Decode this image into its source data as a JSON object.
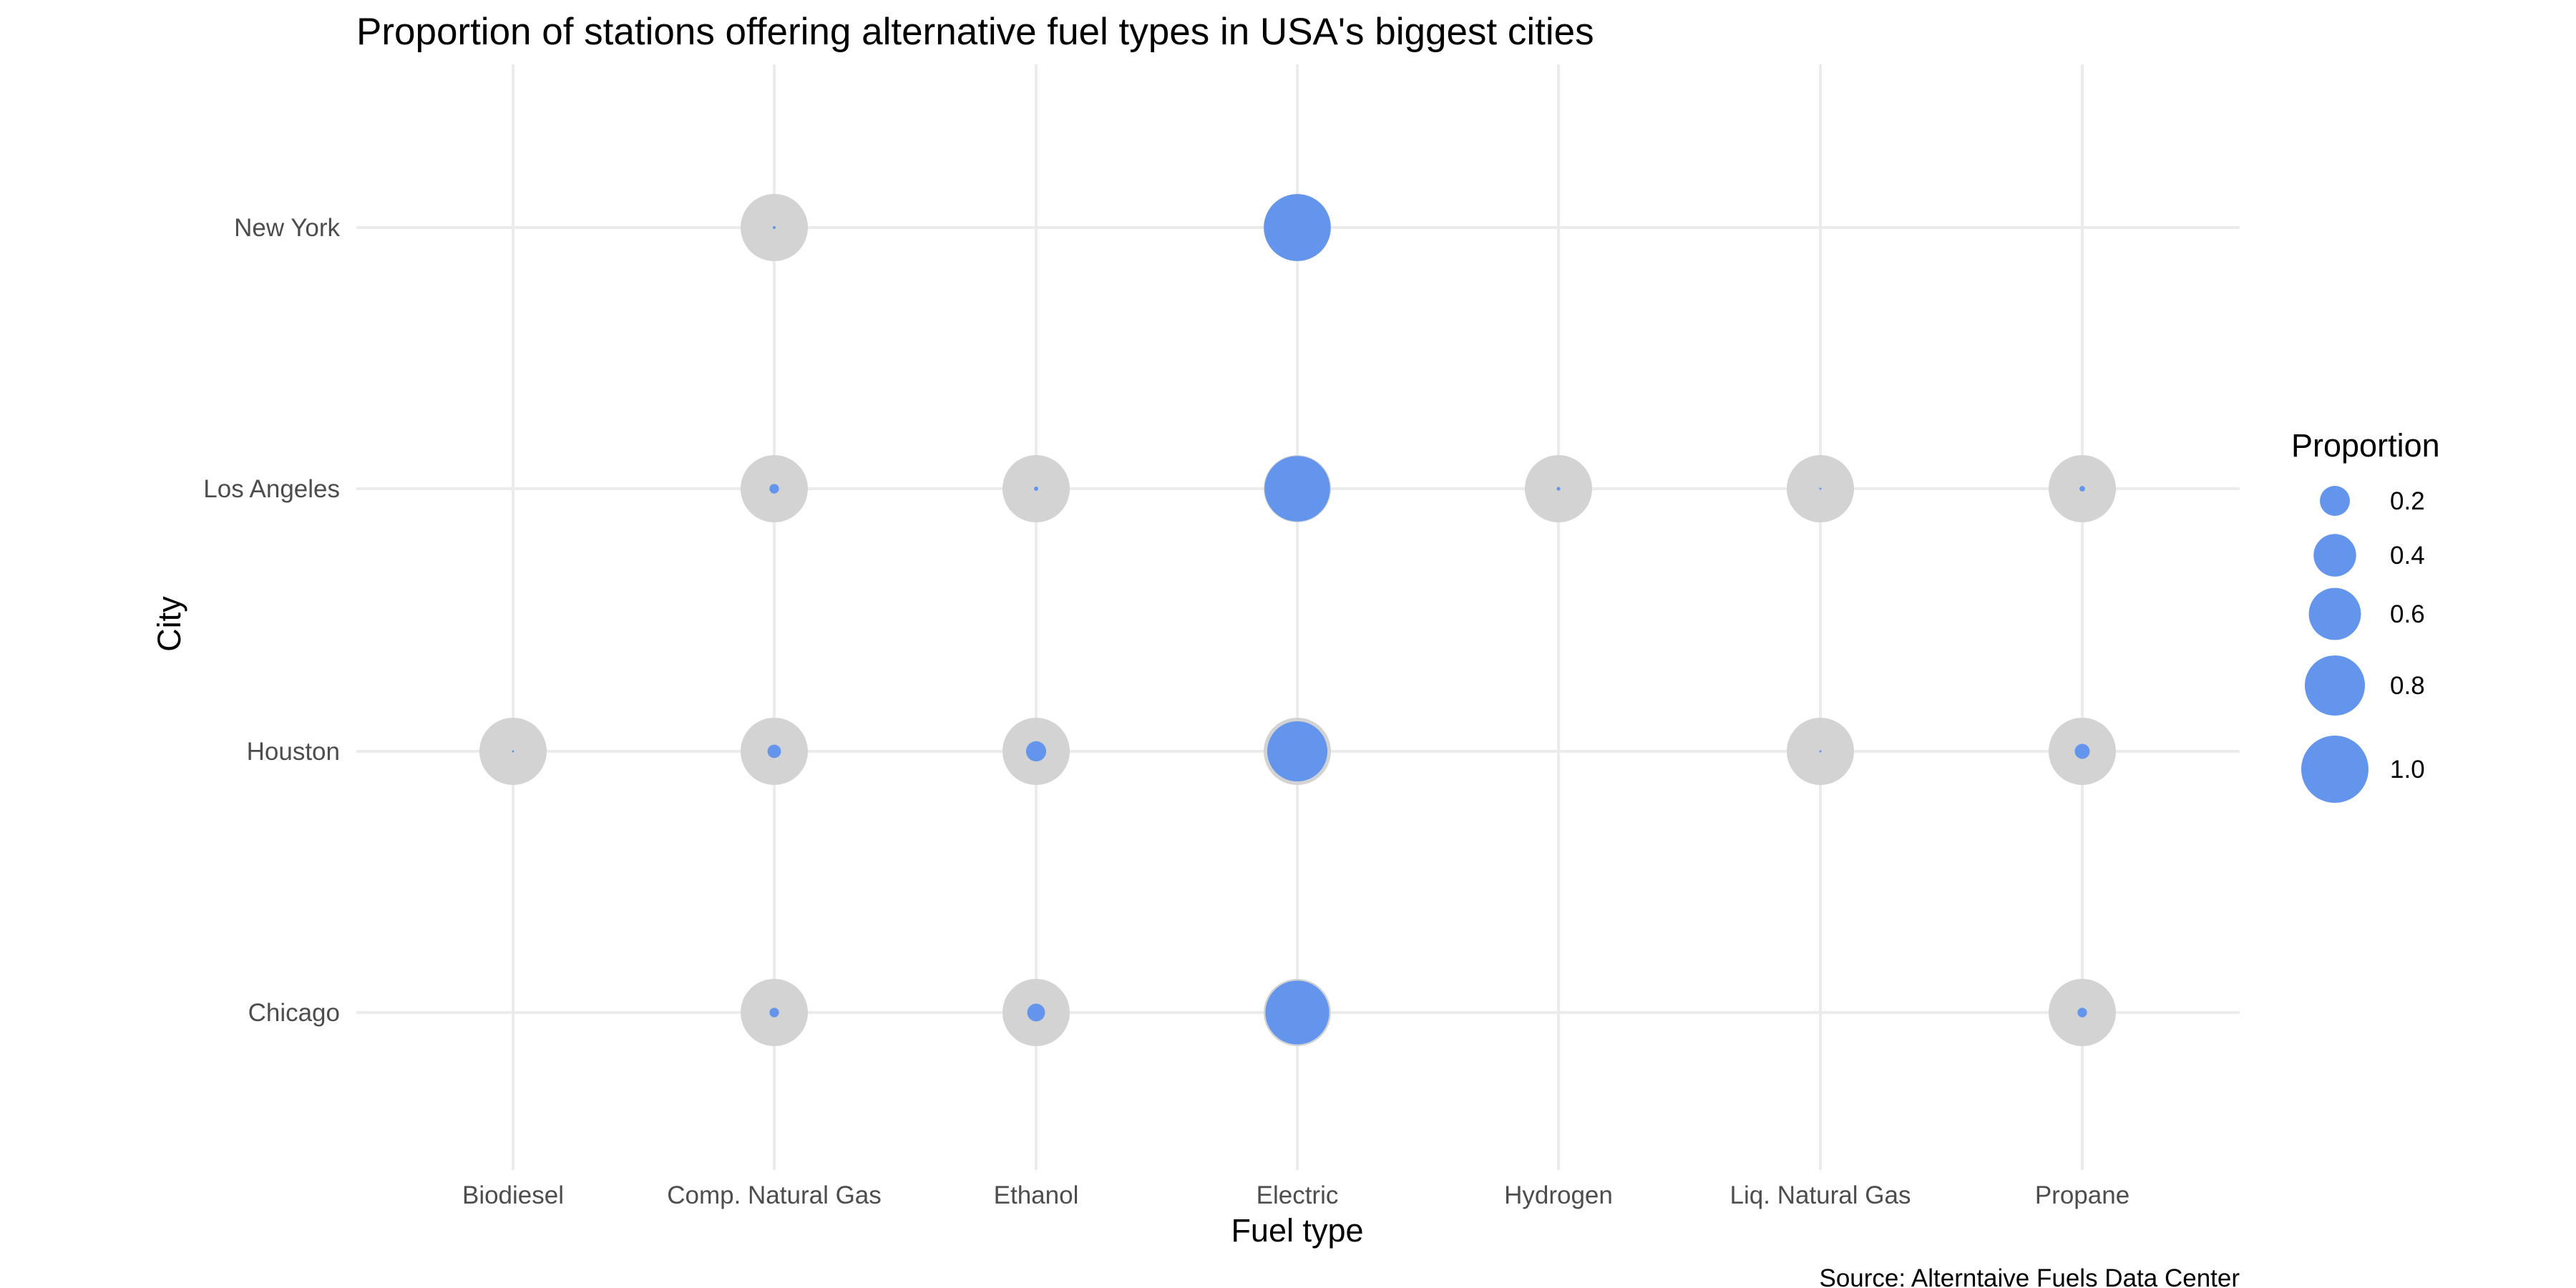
{
  "chart_data": {
    "type": "scatter",
    "title": "Proportion of stations offering alternative fuel types in USA's biggest cities",
    "xlabel": "Fuel type",
    "ylabel": "City",
    "caption": "Source: Alterntaive Fuels Data Center",
    "x_categories": [
      "Biodiesel",
      "Comp. Natural Gas",
      "Ethanol",
      "Electric",
      "Hydrogen",
      "Liq. Natural Gas",
      "Propane"
    ],
    "y_categories": [
      "New York",
      "Los Angeles",
      "Houston",
      "Chicago"
    ],
    "grid": true,
    "size_legend": {
      "title": "Proportion",
      "position": "right",
      "breaks": [
        0.2,
        0.4,
        0.6,
        0.8,
        1.0
      ],
      "labels": [
        "0.2",
        "0.4",
        "0.6",
        "0.8",
        "1.0"
      ]
    },
    "colors": {
      "proportion": "#6495ED",
      "background": "#D3D3D3"
    },
    "points": [
      {
        "city": "New York",
        "fuel": "Comp. Natural Gas",
        "proportion": 0.002
      },
      {
        "city": "New York",
        "fuel": "Electric",
        "proportion": 0.99
      },
      {
        "city": "Los Angeles",
        "fuel": "Comp. Natural Gas",
        "proportion": 0.02
      },
      {
        "city": "Los Angeles",
        "fuel": "Ethanol",
        "proportion": 0.004
      },
      {
        "city": "Los Angeles",
        "fuel": "Electric",
        "proportion": 0.95
      },
      {
        "city": "Los Angeles",
        "fuel": "Hydrogen",
        "proportion": 0.003
      },
      {
        "city": "Los Angeles",
        "fuel": "Liq. Natural Gas",
        "proportion": 0.001
      },
      {
        "city": "Los Angeles",
        "fuel": "Propane",
        "proportion": 0.007
      },
      {
        "city": "Houston",
        "fuel": "Biodiesel",
        "proportion": 0.001
      },
      {
        "city": "Houston",
        "fuel": "Comp. Natural Gas",
        "proportion": 0.04
      },
      {
        "city": "Houston",
        "fuel": "Ethanol",
        "proportion": 0.09
      },
      {
        "city": "Houston",
        "fuel": "Electric",
        "proportion": 0.8
      },
      {
        "city": "Houston",
        "fuel": "Liq. Natural Gas",
        "proportion": 0.001
      },
      {
        "city": "Houston",
        "fuel": "Propane",
        "proportion": 0.05
      },
      {
        "city": "Chicago",
        "fuel": "Comp. Natural Gas",
        "proportion": 0.02
      },
      {
        "city": "Chicago",
        "fuel": "Ethanol",
        "proportion": 0.07
      },
      {
        "city": "Chicago",
        "fuel": "Electric",
        "proportion": 0.9
      },
      {
        "city": "Chicago",
        "fuel": "Propane",
        "proportion": 0.02
      }
    ]
  }
}
